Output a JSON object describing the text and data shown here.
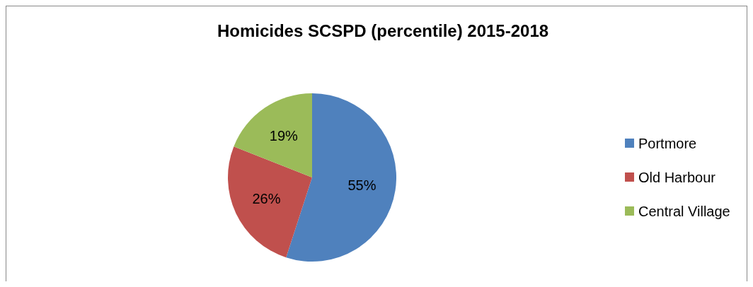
{
  "chart_data": {
    "type": "pie",
    "title": "Homicides SCSPD (percentile) 2015-2018",
    "categories": [
      "Portmore",
      "Old Harbour",
      "Central Village"
    ],
    "values": [
      55,
      26,
      19
    ],
    "colors": [
      "#4f81bd",
      "#c0504d",
      "#9bbb59"
    ],
    "value_labels": [
      "55%",
      "26%",
      "19%"
    ],
    "legend": "right"
  }
}
